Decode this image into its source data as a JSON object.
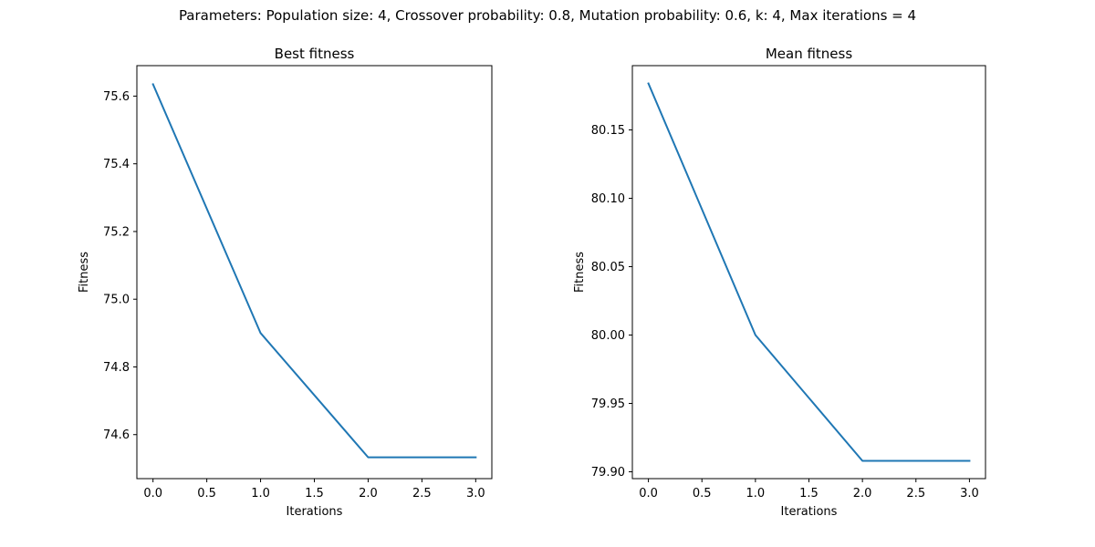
{
  "suptitle": "Parameters: Population size: 4, Crossover probability: 0.8, Mutation probability: 0.6, k: 4, Max iterations = 4",
  "chart_data": [
    {
      "type": "line",
      "title": "Best fitness",
      "xlabel": "Iterations",
      "ylabel": "Fitness",
      "xlim": [
        -0.15,
        3.15
      ],
      "ylim": [
        74.47,
        75.69
      ],
      "xticks": [
        0.0,
        0.5,
        1.0,
        1.5,
        2.0,
        2.5,
        3.0
      ],
      "xtick_labels": [
        "0.0",
        "0.5",
        "1.0",
        "1.5",
        "2.0",
        "2.5",
        "3.0"
      ],
      "yticks": [
        74.6,
        74.8,
        75.0,
        75.2,
        75.4,
        75.6
      ],
      "ytick_labels": [
        "74.6",
        "74.8",
        "75.0",
        "75.2",
        "75.4",
        "75.6"
      ],
      "grid": false,
      "color": "#1f77b4",
      "series": [
        {
          "x": [
            0,
            1,
            2,
            3
          ],
          "y": [
            75.635,
            74.9,
            74.533,
            74.533
          ]
        }
      ]
    },
    {
      "type": "line",
      "title": "Mean fitness",
      "xlabel": "Iterations",
      "ylabel": "Fitness",
      "xlim": [
        -0.15,
        3.15
      ],
      "ylim": [
        79.895,
        80.197
      ],
      "xticks": [
        0.0,
        0.5,
        1.0,
        1.5,
        2.0,
        2.5,
        3.0
      ],
      "xtick_labels": [
        "0.0",
        "0.5",
        "1.0",
        "1.5",
        "2.0",
        "2.5",
        "3.0"
      ],
      "yticks": [
        79.9,
        79.95,
        80.0,
        80.05,
        80.1,
        80.15
      ],
      "ytick_labels": [
        "79.90",
        "79.95",
        "80.00",
        "80.05",
        "80.10",
        "80.15"
      ],
      "grid": false,
      "color": "#1f77b4",
      "series": [
        {
          "x": [
            0,
            1,
            2,
            3
          ],
          "y": [
            80.184,
            80.0,
            79.908,
            79.908
          ]
        }
      ]
    }
  ]
}
